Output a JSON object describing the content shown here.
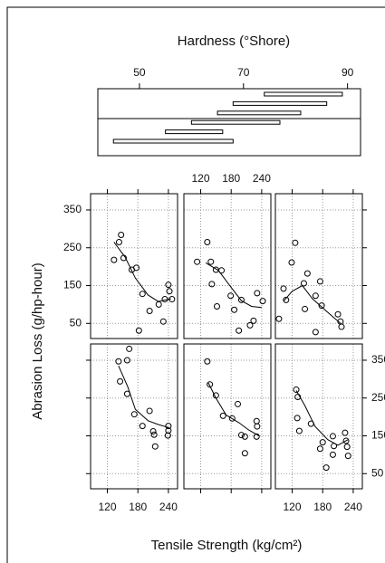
{
  "chart_data": {
    "type": "coplot",
    "title": "Hardness (°Shore)",
    "xlabel": "Tensile Strength (kg/cm²)",
    "ylabel": "Abrasion Loss (g/hp-hour)",
    "given_lim": [
      42,
      92.5
    ],
    "given_ticks": [
      50,
      70,
      90
    ],
    "intervals": [
      [
        45,
        68
      ],
      [
        55,
        66
      ],
      [
        60,
        77
      ],
      [
        65,
        81
      ],
      [
        68,
        86
      ],
      [
        74,
        89
      ]
    ],
    "xlim": [
      87,
      258
    ],
    "ylim": [
      10,
      393
    ],
    "xticks": [
      120,
      180,
      240
    ],
    "yticks": [
      50,
      150,
      250,
      350
    ],
    "grid": true,
    "panels": [
      {
        "x": [
          142,
          159,
          163,
          145,
          159,
          173,
          189,
          203,
          210,
          212,
          214,
          239,
          240,
          240
        ],
        "y": [
          347,
          350,
          380,
          294,
          261,
          207,
          176,
          216,
          162,
          153,
          122,
          151,
          176,
          164
        ],
        "curve_x": [
          142,
          160,
          175,
          200,
          220,
          240
        ],
        "curve_y": [
          335,
          280,
          220,
          190,
          180,
          172
        ]
      },
      {
        "x": [
          133,
          138,
          150,
          164,
          182,
          193,
          200,
          207,
          230,
          230,
          231,
          207
        ],
        "y": [
          347,
          286,
          257,
          203,
          196,
          234,
          152,
          148,
          189,
          148,
          175,
          104
        ],
        "curve_x": [
          135,
          150,
          170,
          195,
          215,
          235
        ],
        "curve_y": [
          290,
          250,
          205,
          185,
          165,
          150
        ]
      },
      {
        "x": [
          128,
          131,
          130,
          134,
          157,
          175,
          180,
          187,
          200,
          200,
          224,
          226,
          228,
          230,
          202
        ],
        "y": [
          272,
          253,
          197,
          163,
          182,
          116,
          133,
          66,
          149,
          100,
          158,
          137,
          121,
          97,
          123
        ],
        "curve_x": [
          128,
          145,
          165,
          190,
          210,
          230
        ],
        "curve_y": [
          270,
          230,
          175,
          140,
          125,
          140
        ]
      },
      {
        "x": [
          133,
          143,
          147,
          152,
          168,
          177,
          189,
          203,
          221,
          233,
          240,
          242,
          247,
          230,
          182
        ],
        "y": [
          218,
          265,
          284,
          223,
          192,
          197,
          128,
          83,
          100,
          114,
          152,
          135,
          114,
          55,
          31
        ],
        "curve_x": [
          133,
          155,
          175,
          200,
          220,
          245
        ],
        "curve_y": [
          265,
          225,
          170,
          125,
          108,
          115
        ]
      },
      {
        "x": [
          113,
          133,
          140,
          142,
          150,
          161,
          152,
          179,
          186,
          195,
          200,
          217,
          224,
          231,
          242
        ],
        "y": [
          213,
          265,
          213,
          154,
          192,
          190,
          95,
          123,
          86,
          31,
          112,
          45,
          57,
          130,
          109
        ],
        "curve_x": [
          130,
          155,
          180,
          200,
          220,
          240
        ],
        "curve_y": [
          210,
          190,
          145,
          110,
          95,
          92
        ]
      },
      {
        "x": [
          94,
          103,
          108,
          119,
          126,
          143,
          150,
          145,
          166,
          175,
          178,
          166,
          210,
          217,
          215
        ],
        "y": [
          62,
          142,
          112,
          211,
          263,
          156,
          182,
          88,
          123,
          161,
          97,
          27,
          74,
          41,
          55
        ],
        "curve_x": [
          104,
          120,
          140,
          160,
          185,
          215
        ],
        "curve_y": [
          110,
          135,
          150,
          115,
          85,
          50
        ]
      }
    ]
  }
}
